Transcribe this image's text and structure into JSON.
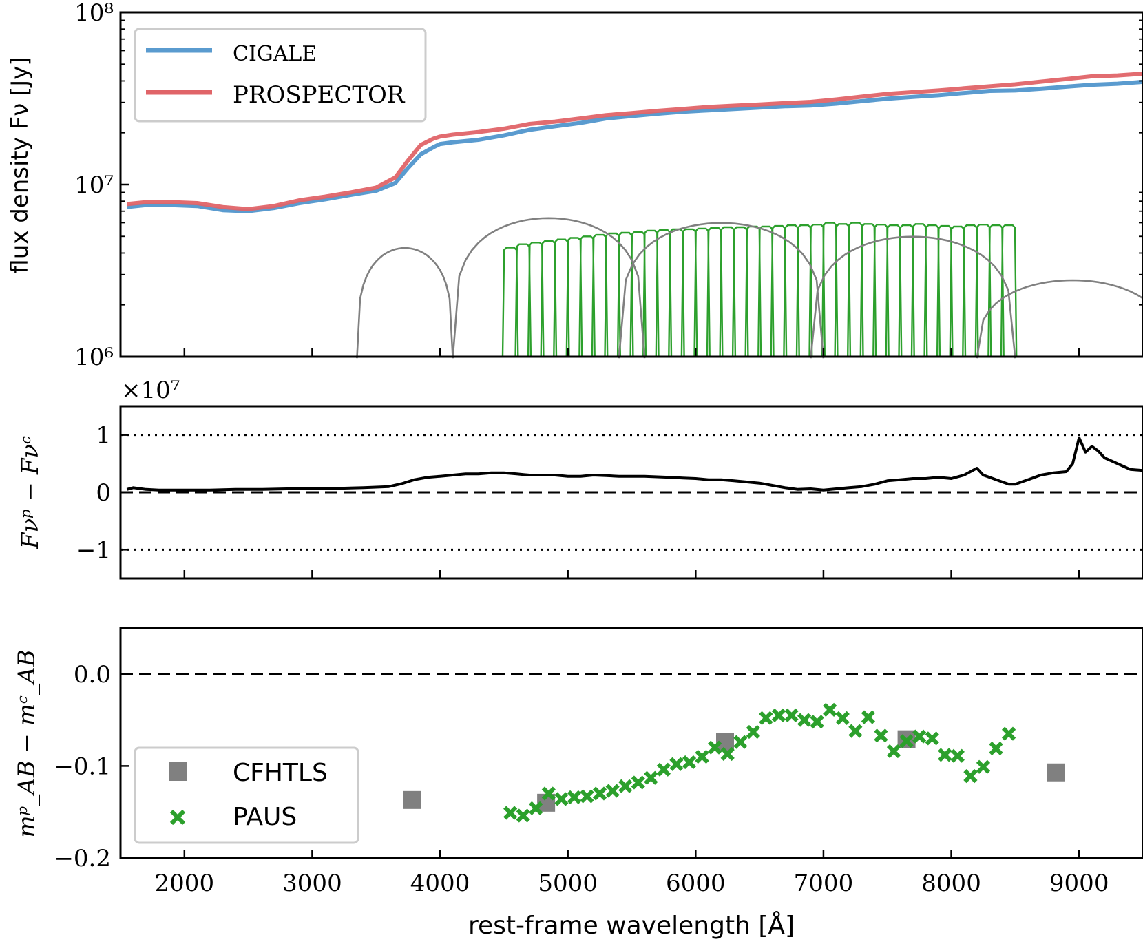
{
  "chart_data": [
    {
      "type": "line",
      "panel": "top",
      "ylabel": "flux density Fν [Jy]",
      "yscale": "log",
      "ylim": [
        1000000,
        100000000
      ],
      "xlim": [
        1500,
        9500
      ],
      "ytick_labels": [
        "10⁶",
        "10⁷",
        "10⁸"
      ],
      "ytick_values": [
        1000000,
        10000000,
        100000000
      ],
      "legend": [
        "CIGALE",
        "PROSPECTOR"
      ],
      "legend_position": "top-left",
      "series": [
        {
          "name": "CIGALE",
          "color": "#5a9bcf",
          "x": [
            1550,
            1700,
            1900,
            2100,
            2300,
            2500,
            2700,
            2900,
            3100,
            3300,
            3500,
            3650,
            3750,
            3850,
            3950,
            4000,
            4100,
            4300,
            4500,
            4700,
            4900,
            5100,
            5300,
            5500,
            5700,
            5900,
            6100,
            6300,
            6500,
            6700,
            6900,
            7100,
            7300,
            7500,
            7700,
            7900,
            8100,
            8300,
            8500,
            8700,
            8900,
            9100,
            9300,
            9500
          ],
          "y": [
            7400000,
            7600000,
            7600000,
            7500000,
            7100000,
            7000000,
            7300000,
            7800000,
            8200000,
            8700000,
            9200000,
            10200000,
            12500000,
            15000000,
            16500000,
            17200000,
            17600000,
            18200000,
            19300000,
            20800000,
            21800000,
            22800000,
            24200000,
            25000000,
            25800000,
            26500000,
            27000000,
            27500000,
            28000000,
            28500000,
            28800000,
            29500000,
            30500000,
            31500000,
            32300000,
            33000000,
            34000000,
            35000000,
            35200000,
            36000000,
            37000000,
            38000000,
            38500000,
            39500000
          ]
        },
        {
          "name": "PROSPECTOR",
          "color": "#e06468",
          "x": [
            1550,
            1700,
            1900,
            2100,
            2300,
            2500,
            2700,
            2900,
            3100,
            3300,
            3500,
            3650,
            3750,
            3850,
            3950,
            4000,
            4100,
            4300,
            4500,
            4700,
            4900,
            5100,
            5300,
            5500,
            5700,
            5900,
            6100,
            6300,
            6500,
            6700,
            6900,
            7100,
            7300,
            7500,
            7700,
            7900,
            8100,
            8300,
            8500,
            8700,
            8900,
            9100,
            9300,
            9500
          ],
          "y": [
            7700000,
            7900000,
            7900000,
            7800000,
            7400000,
            7200000,
            7500000,
            8100000,
            8500000,
            9000000,
            9600000,
            11000000,
            13800000,
            17000000,
            18500000,
            19000000,
            19500000,
            20200000,
            21100000,
            22500000,
            23200000,
            24200000,
            25300000,
            26000000,
            26800000,
            27500000,
            28200000,
            28700000,
            29200000,
            29700000,
            30200000,
            31200000,
            32400000,
            33600000,
            34400000,
            35200000,
            36200000,
            37200000,
            38200000,
            39600000,
            41000000,
            42500000,
            43000000,
            44000000
          ]
        }
      ],
      "filter_curves": {
        "cfhtls_color": "#808080",
        "paus_color": "#2ca02c",
        "paus_centers": [
          4550,
          4650,
          4750,
          4850,
          4950,
          5050,
          5150,
          5250,
          5350,
          5450,
          5550,
          5650,
          5750,
          5850,
          5950,
          6050,
          6150,
          6250,
          6350,
          6450,
          6550,
          6650,
          6750,
          6850,
          6950,
          7050,
          7150,
          7250,
          7350,
          7450,
          7550,
          7650,
          7750,
          7850,
          7950,
          8050,
          8150,
          8250,
          8350,
          8450
        ],
        "paus_peaks": [
          4300000,
          4500000,
          4600000,
          4700000,
          4800000,
          4900000,
          5000000,
          5100000,
          5200000,
          5250000,
          5300000,
          5400000,
          5450000,
          5500000,
          5500000,
          5550000,
          5600000,
          5650000,
          5650000,
          5700000,
          5700000,
          5750000,
          5800000,
          5800000,
          5850000,
          6000000,
          5900000,
          6000000,
          5900000,
          5850000,
          5800000,
          5800000,
          5900000,
          5800000,
          5750000,
          5700000,
          5800000,
          5850000,
          5800000,
          5800000
        ]
      }
    },
    {
      "type": "line",
      "panel": "middle",
      "ylabel": "Fνᵖ − Fνᶜ",
      "multiplier_label": "×10⁷",
      "ylim": [
        -1.5,
        1.5
      ],
      "xlim": [
        1500,
        9500
      ],
      "ytick_labels": [
        "−1",
        "0",
        "1"
      ],
      "ytick_values": [
        -1,
        0,
        1
      ],
      "reference_lines": {
        "dashed": [
          0
        ],
        "dotted": [
          -1,
          1
        ]
      },
      "series": [
        {
          "name": "difference",
          "color": "#000000",
          "x": [
            1550,
            1600,
            1700,
            1800,
            2000,
            2200,
            2400,
            2600,
            2800,
            3000,
            3200,
            3400,
            3600,
            3700,
            3800,
            3900,
            4000,
            4100,
            4200,
            4300,
            4400,
            4500,
            4600,
            4700,
            4800,
            4900,
            5000,
            5100,
            5200,
            5300,
            5400,
            5500,
            5600,
            5700,
            5800,
            5900,
            6000,
            6100,
            6200,
            6300,
            6400,
            6500,
            6550,
            6600,
            6700,
            6800,
            6900,
            7000,
            7100,
            7200,
            7300,
            7400,
            7500,
            7600,
            7700,
            7800,
            7900,
            8000,
            8100,
            8150,
            8200,
            8250,
            8300,
            8400,
            8450,
            8500,
            8600,
            8700,
            8800,
            8900,
            8950,
            9000,
            9050,
            9100,
            9150,
            9200,
            9300,
            9400,
            9500
          ],
          "y": [
            0.05,
            0.08,
            0.05,
            0.04,
            0.04,
            0.04,
            0.05,
            0.05,
            0.06,
            0.06,
            0.07,
            0.08,
            0.1,
            0.15,
            0.22,
            0.26,
            0.28,
            0.3,
            0.32,
            0.32,
            0.34,
            0.34,
            0.32,
            0.3,
            0.3,
            0.3,
            0.28,
            0.28,
            0.3,
            0.29,
            0.28,
            0.28,
            0.28,
            0.27,
            0.26,
            0.25,
            0.24,
            0.22,
            0.22,
            0.2,
            0.18,
            0.16,
            0.14,
            0.12,
            0.08,
            0.05,
            0.06,
            0.04,
            0.06,
            0.08,
            0.1,
            0.14,
            0.2,
            0.22,
            0.24,
            0.24,
            0.26,
            0.24,
            0.3,
            0.36,
            0.42,
            0.3,
            0.26,
            0.18,
            0.14,
            0.14,
            0.22,
            0.3,
            0.34,
            0.36,
            0.5,
            0.95,
            0.7,
            0.8,
            0.72,
            0.6,
            0.5,
            0.4,
            0.38
          ]
        }
      ]
    },
    {
      "type": "scatter",
      "panel": "bottom",
      "ylabel": "mᵖ_AB − mᶜ_AB",
      "xlabel": "rest-frame wavelength [Å]",
      "ylim": [
        -0.2,
        0.05
      ],
      "xlim": [
        1500,
        9500
      ],
      "ytick_labels": [
        "−0.2",
        "−0.1",
        "0.0"
      ],
      "ytick_values": [
        -0.2,
        -0.1,
        0.0
      ],
      "xtick_labels": [
        "2000",
        "3000",
        "4000",
        "5000",
        "6000",
        "7000",
        "8000",
        "9000"
      ],
      "xtick_values": [
        2000,
        3000,
        4000,
        5000,
        6000,
        7000,
        8000,
        9000
      ],
      "reference_lines": {
        "dashed": [
          0.0
        ]
      },
      "legend": [
        "CFHTLS",
        "PAUS"
      ],
      "legend_position": "bottom-left",
      "series": [
        {
          "name": "CFHTLS",
          "marker": "square",
          "color": "#808080",
          "x": [
            3780,
            4830,
            6230,
            7650,
            8820
          ],
          "y": [
            -0.137,
            -0.14,
            -0.074,
            -0.071,
            -0.107
          ]
        },
        {
          "name": "PAUS",
          "marker": "x",
          "color": "#2ca02c",
          "x": [
            4550,
            4650,
            4750,
            4850,
            4950,
            5050,
            5150,
            5250,
            5350,
            5450,
            5550,
            5650,
            5750,
            5850,
            5950,
            6050,
            6150,
            6250,
            6350,
            6450,
            6550,
            6650,
            6750,
            6850,
            6950,
            7050,
            7150,
            7250,
            7350,
            7450,
            7550,
            7650,
            7750,
            7850,
            7950,
            8050,
            8150,
            8250,
            8350,
            8450
          ],
          "y": [
            -0.151,
            -0.154,
            -0.146,
            -0.13,
            -0.136,
            -0.134,
            -0.133,
            -0.13,
            -0.127,
            -0.122,
            -0.118,
            -0.113,
            -0.104,
            -0.098,
            -0.096,
            -0.09,
            -0.08,
            -0.087,
            -0.074,
            -0.063,
            -0.048,
            -0.045,
            -0.045,
            -0.05,
            -0.052,
            -0.039,
            -0.048,
            -0.062,
            -0.047,
            -0.067,
            -0.084,
            -0.073,
            -0.068,
            -0.07,
            -0.088,
            -0.089,
            -0.111,
            -0.101,
            -0.081,
            -0.065
          ]
        }
      ]
    }
  ]
}
